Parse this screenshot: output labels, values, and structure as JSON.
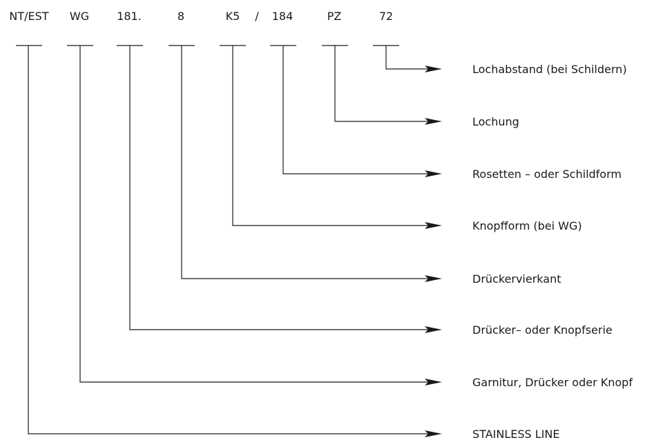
{
  "code_parts": [
    "NT/EST",
    "WG",
    "181.",
    "8",
    "K5",
    "/",
    "184",
    "PZ",
    "72"
  ],
  "legend": [
    {
      "segment": "72",
      "label": "Lochabstand (bei Schildern)"
    },
    {
      "segment": "PZ",
      "label": "Lochung"
    },
    {
      "segment": "184",
      "label": "Rosetten – oder Schildform"
    },
    {
      "segment": "K5",
      "label": "Knopfform (bei WG)"
    },
    {
      "segment": "8",
      "label": "Drückervierkant"
    },
    {
      "segment": "181.",
      "label": "Drücker– oder Knopfserie"
    },
    {
      "segment": "WG",
      "label": "Garnitur, Drücker oder Knopf"
    },
    {
      "segment": "NT/EST",
      "label": "STAINLESS LINE"
    }
  ]
}
